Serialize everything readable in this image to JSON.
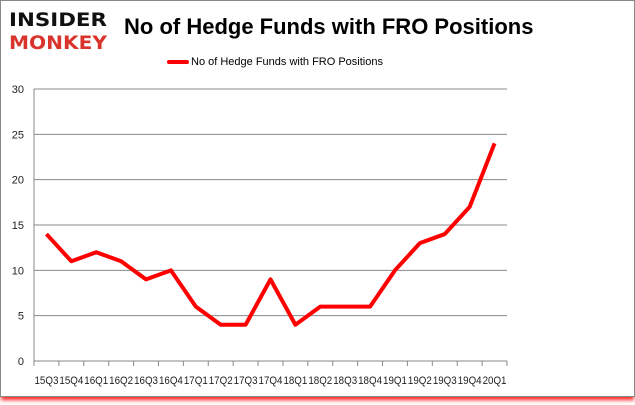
{
  "logo": {
    "line1": "INSIDER",
    "line2": "MONKEY"
  },
  "colors": {
    "series": "#ff0000",
    "logo_top": "#111111",
    "logo_bottom": "#d9342b",
    "grid": "#888888"
  },
  "chart_data": {
    "type": "line",
    "title": "No of Hedge Funds with FRO Positions",
    "xlabel": "",
    "ylabel": "",
    "categories": [
      "15Q3",
      "15Q4",
      "16Q1",
      "16Q2",
      "16Q3",
      "16Q4",
      "17Q1",
      "17Q2",
      "17Q3",
      "17Q4",
      "18Q1",
      "18Q2",
      "18Q3",
      "18Q4",
      "19Q1",
      "19Q2",
      "19Q3",
      "19Q4",
      "20Q1"
    ],
    "series": [
      {
        "name": "No of Hedge Funds with FRO Positions",
        "values": [
          14,
          11,
          12,
          11,
          9,
          10,
          6,
          4,
          4,
          9,
          4,
          6,
          6,
          6,
          10,
          13,
          14,
          17,
          24
        ]
      }
    ],
    "ylim": [
      0,
      30
    ],
    "yticks": [
      0,
      5,
      10,
      15,
      20,
      25,
      30
    ],
    "grid": true,
    "legend": "top-center"
  }
}
